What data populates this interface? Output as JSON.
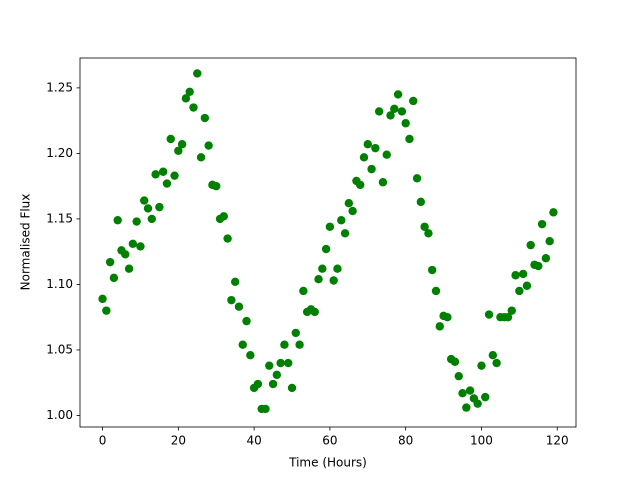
{
  "chart_data": {
    "type": "scatter",
    "xlabel": "Time (Hours)",
    "ylabel": "Normalised Flux",
    "x": [
      0,
      1,
      2,
      3,
      4,
      5,
      6,
      7,
      8,
      9,
      10,
      11,
      12,
      13,
      14,
      15,
      16,
      17,
      18,
      19,
      20,
      21,
      22,
      23,
      24,
      25,
      26,
      27,
      28,
      29,
      30,
      31,
      32,
      33,
      34,
      35,
      36,
      37,
      38,
      39,
      40,
      41,
      42,
      43,
      44,
      45,
      46,
      47,
      48,
      49,
      50,
      51,
      52,
      53,
      54,
      55,
      56,
      57,
      58,
      59,
      60,
      61,
      62,
      63,
      64,
      65,
      66,
      67,
      68,
      69,
      70,
      71,
      72,
      73,
      74,
      75,
      76,
      77,
      78,
      79,
      80,
      81,
      82,
      83,
      84,
      85,
      86,
      87,
      88,
      89,
      90,
      91,
      92,
      93,
      94,
      95,
      96,
      97,
      98,
      99,
      100,
      101,
      102,
      103,
      104,
      105,
      106,
      107,
      108,
      109,
      110,
      111,
      112,
      113,
      114,
      115,
      116,
      117,
      118,
      119
    ],
    "values": [
      1.089,
      1.08,
      1.117,
      1.105,
      1.149,
      1.126,
      1.123,
      1.112,
      1.131,
      1.148,
      1.129,
      1.164,
      1.158,
      1.15,
      1.184,
      1.159,
      1.186,
      1.177,
      1.211,
      1.183,
      1.202,
      1.207,
      1.242,
      1.247,
      1.235,
      1.261,
      1.197,
      1.227,
      1.206,
      1.176,
      1.175,
      1.15,
      1.152,
      1.135,
      1.088,
      1.102,
      1.083,
      1.054,
      1.072,
      1.046,
      1.021,
      1.024,
      1.005,
      1.005,
      1.038,
      1.024,
      1.031,
      1.04,
      1.054,
      1.04,
      1.021,
      1.063,
      1.054,
      1.095,
      1.079,
      1.081,
      1.079,
      1.104,
      1.112,
      1.127,
      1.144,
      1.103,
      1.112,
      1.149,
      1.139,
      1.162,
      1.156,
      1.179,
      1.176,
      1.197,
      1.207,
      1.188,
      1.204,
      1.232,
      1.178,
      1.199,
      1.229,
      1.234,
      1.245,
      1.232,
      1.223,
      1.211,
      1.24,
      1.181,
      1.163,
      1.144,
      1.139,
      1.111,
      1.095,
      1.068,
      1.076,
      1.075,
      1.043,
      1.041,
      1.03,
      1.017,
      1.006,
      1.019,
      1.013,
      1.009,
      1.038,
      1.014,
      1.077,
      1.046,
      1.04,
      1.075,
      1.075,
      1.075,
      1.08,
      1.107,
      1.095,
      1.108,
      1.099,
      1.13,
      1.115,
      1.114,
      1.146,
      1.12,
      1.133,
      1.155
    ],
    "color": "#008000",
    "xlim": [
      -5.95,
      124.95
    ],
    "ylim": [
      0.9912,
      1.2728
    ],
    "xticks": [
      0,
      20,
      40,
      60,
      80,
      100,
      120
    ],
    "yticks": [
      {
        "value": 1.0,
        "label": "1.00"
      },
      {
        "value": 1.05,
        "label": "1.05"
      },
      {
        "value": 1.1,
        "label": "1.10"
      },
      {
        "value": 1.15,
        "label": "1.15"
      },
      {
        "value": 1.2,
        "label": "1.20"
      },
      {
        "value": 1.25,
        "label": "1.25"
      }
    ],
    "grid": false
  }
}
